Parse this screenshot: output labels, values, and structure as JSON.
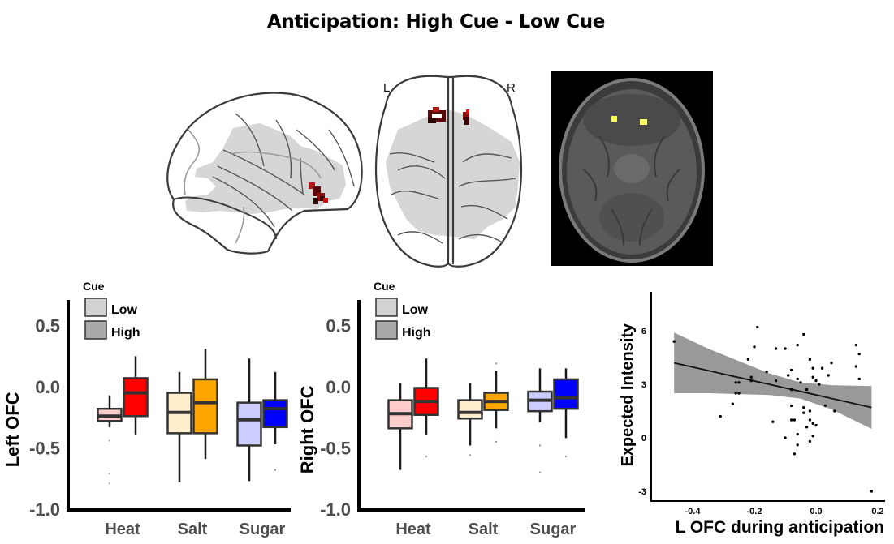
{
  "figure": {
    "title": "Anticipation: High Cue - Low Cue",
    "glass_brain": {
      "hemisphere_labels": [
        "L",
        "R"
      ],
      "views": [
        "sagittal",
        "axial"
      ],
      "cluster_color": "#8b1010"
    },
    "mri_slice": {
      "view": "axial",
      "cluster_color": "#ffff66"
    }
  },
  "chart_data": [
    {
      "type": "box",
      "id": "left-ofc",
      "ylabel": "Left OFC",
      "xlabel": "",
      "ylim": [
        -1.0,
        0.7
      ],
      "yticks": [
        0.5,
        0.0,
        -0.5,
        -1.0
      ],
      "ytick_labels": [
        "0.5",
        "0.0",
        "-0.5",
        "-1.0"
      ],
      "categories": [
        "Heat",
        "Salt",
        "Sugar"
      ],
      "legend": {
        "title": "Cue",
        "entries": [
          {
            "label": "Low",
            "color": "#d3d3d3"
          },
          {
            "label": "High",
            "color": "#a9a9a9"
          }
        ],
        "position": "top-left"
      },
      "groups": [
        {
          "category": "Heat",
          "cue": "Low",
          "color": "#ffcccc",
          "whisker_low": -0.33,
          "q1": -0.28,
          "median": -0.24,
          "q3": -0.18,
          "whisker_high": -0.07,
          "outliers": [
            -0.44,
            -0.71,
            -0.79
          ]
        },
        {
          "category": "Heat",
          "cue": "High",
          "color": "#ff0000",
          "whisker_low": -0.39,
          "q1": -0.24,
          "median": -0.05,
          "q3": 0.07,
          "whisker_high": 0.25,
          "outliers": []
        },
        {
          "category": "Salt",
          "cue": "Low",
          "color": "#ffeecc",
          "whisker_low": -0.78,
          "q1": -0.38,
          "median": -0.21,
          "q3": -0.05,
          "whisker_high": 0.12,
          "outliers": []
        },
        {
          "category": "Salt",
          "cue": "High",
          "color": "#ffa500",
          "whisker_low": -0.59,
          "q1": -0.38,
          "median": -0.13,
          "q3": 0.06,
          "whisker_high": 0.31,
          "outliers": []
        },
        {
          "category": "Sugar",
          "cue": "Low",
          "color": "#ccccff",
          "whisker_low": -0.77,
          "q1": -0.48,
          "median": -0.27,
          "q3": -0.13,
          "whisker_high": 0.23,
          "outliers": []
        },
        {
          "category": "Sugar",
          "cue": "High",
          "color": "#0000ff",
          "whisker_low": -0.47,
          "q1": -0.33,
          "median": -0.18,
          "q3": -0.11,
          "whisker_high": 0.12,
          "outliers": [
            -0.68
          ]
        }
      ]
    },
    {
      "type": "box",
      "id": "right-ofc",
      "ylabel": "Right OFC",
      "xlabel": "",
      "ylim": [
        -1.0,
        0.7
      ],
      "yticks": [
        0.5,
        0.0,
        -0.5,
        -1.0
      ],
      "ytick_labels": [
        "0.5",
        "0.0",
        "-0.5",
        "-1.0"
      ],
      "categories": [
        "Heat",
        "Salt",
        "Sugar"
      ],
      "legend": {
        "title": "Cue",
        "entries": [
          {
            "label": "Low",
            "color": "#d3d3d3"
          },
          {
            "label": "High",
            "color": "#a9a9a9"
          }
        ],
        "position": "top-left"
      },
      "groups": [
        {
          "category": "Heat",
          "cue": "Low",
          "color": "#ffcccc",
          "whisker_low": -0.68,
          "q1": -0.34,
          "median": -0.22,
          "q3": -0.11,
          "whisker_high": 0.03,
          "outliers": []
        },
        {
          "category": "Heat",
          "cue": "High",
          "color": "#ff0000",
          "whisker_low": -0.39,
          "q1": -0.23,
          "median": -0.12,
          "q3": -0.01,
          "whisker_high": 0.23,
          "outliers": [
            -0.57
          ]
        },
        {
          "category": "Salt",
          "cue": "Low",
          "color": "#ffeecc",
          "whisker_low": -0.48,
          "q1": -0.26,
          "median": -0.21,
          "q3": -0.11,
          "whisker_high": 0.03,
          "outliers": [
            -0.56
          ]
        },
        {
          "category": "Salt",
          "cue": "High",
          "color": "#ffa500",
          "whisker_low": -0.34,
          "q1": -0.19,
          "median": -0.12,
          "q3": -0.05,
          "whisker_high": 0.13,
          "outliers": [
            0.19,
            -0.45
          ]
        },
        {
          "category": "Sugar",
          "cue": "Low",
          "color": "#ccccff",
          "whisker_low": -0.29,
          "q1": -0.2,
          "median": -0.11,
          "q3": -0.04,
          "whisker_high": 0.15,
          "outliers": [
            -0.48,
            -0.7
          ]
        },
        {
          "category": "Sugar",
          "cue": "High",
          "color": "#0000ff",
          "whisker_low": -0.42,
          "q1": -0.18,
          "median": -0.09,
          "q3": 0.06,
          "whisker_high": 0.15,
          "outliers": [
            -0.57
          ]
        }
      ]
    },
    {
      "type": "scatter",
      "id": "ofc-vs-intensity",
      "xlabel": "L OFC during anticipation",
      "ylabel": "Expected Intensity",
      "xlim": [
        -0.5,
        0.22
      ],
      "ylim": [
        -3.4,
        8.2
      ],
      "xticks": [
        -0.4,
        -0.2,
        0.0,
        0.2
      ],
      "xtick_labels": [
        "-0.4",
        "-0.2",
        "0.0",
        "0.2"
      ],
      "yticks": [
        6,
        3,
        0,
        -3
      ],
      "ytick_labels": [
        "6",
        "3",
        "0",
        "-3"
      ],
      "grid": false,
      "points": [
        [
          -0.46,
          5.4
        ],
        [
          -0.19,
          6.2
        ],
        [
          -0.2,
          5.1
        ],
        [
          -0.22,
          4.4
        ],
        [
          -0.21,
          3.4
        ],
        [
          -0.21,
          3.2
        ],
        [
          -0.26,
          3.1
        ],
        [
          -0.25,
          3.1
        ],
        [
          -0.26,
          2.5
        ],
        [
          -0.25,
          2.5
        ],
        [
          -0.27,
          1.9
        ],
        [
          -0.31,
          1.2
        ],
        [
          -0.16,
          3.7
        ],
        [
          -0.13,
          3.2
        ],
        [
          -0.13,
          5.0
        ],
        [
          -0.1,
          5.0
        ],
        [
          -0.14,
          0.9
        ],
        [
          -0.1,
          0.0
        ],
        [
          -0.09,
          3.5
        ],
        [
          -0.08,
          3.8
        ],
        [
          -0.08,
          2.7
        ],
        [
          -0.08,
          1.8
        ],
        [
          -0.08,
          1.0
        ],
        [
          -0.07,
          1.0
        ],
        [
          -0.06,
          5.2
        ],
        [
          -0.04,
          5.8
        ],
        [
          -0.06,
          3.3
        ],
        [
          -0.05,
          3.1
        ],
        [
          -0.03,
          2.7
        ],
        [
          -0.04,
          1.7
        ],
        [
          -0.04,
          1.4
        ],
        [
          -0.02,
          1.5
        ],
        [
          -0.02,
          1.0
        ],
        [
          -0.03,
          0.6
        ],
        [
          -0.01,
          0.8
        ],
        [
          0.0,
          0.7
        ],
        [
          -0.06,
          0.2
        ],
        [
          -0.06,
          -0.4
        ],
        [
          -0.07,
          -0.9
        ],
        [
          -0.02,
          -0.2
        ],
        [
          -0.01,
          0.1
        ],
        [
          -0.02,
          4.4
        ],
        [
          -0.01,
          3.9
        ],
        [
          -0.01,
          3.4
        ],
        [
          0.0,
          3.2
        ],
        [
          0.01,
          3.0
        ],
        [
          0.02,
          3.9
        ],
        [
          0.04,
          3.5
        ],
        [
          0.05,
          4.2
        ],
        [
          0.03,
          1.8
        ],
        [
          0.06,
          1.5
        ],
        [
          0.13,
          5.2
        ],
        [
          0.14,
          4.7
        ],
        [
          0.13,
          4.0
        ],
        [
          0.14,
          3.3
        ],
        [
          0.18,
          -3.0
        ]
      ],
      "fit_line": {
        "x": [
          -0.46,
          0.18
        ],
        "y": [
          4.2,
          1.7
        ]
      },
      "confidence_band": {
        "x": [
          -0.46,
          -0.35,
          -0.25,
          -0.15,
          -0.05,
          0.05,
          0.18
        ],
        "upper": [
          5.9,
          5.0,
          4.3,
          3.6,
          3.1,
          2.95,
          2.9
        ],
        "lower": [
          2.5,
          2.5,
          2.45,
          2.4,
          2.2,
          1.6,
          0.5
        ]
      },
      "band_color": "#999999"
    }
  ]
}
